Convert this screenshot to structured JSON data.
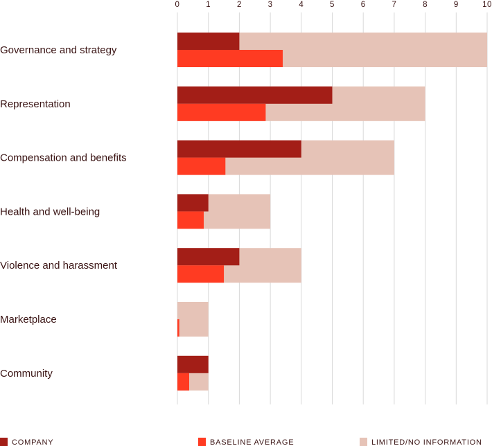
{
  "chart_data": {
    "type": "bar",
    "orientation": "horizontal",
    "title": "",
    "xlabel": "",
    "ylabel": "",
    "xlim": [
      0,
      10
    ],
    "ticks": [
      "0",
      "1",
      "2",
      "3",
      "4",
      "5",
      "6",
      "7",
      "8",
      "9",
      "10"
    ],
    "grid": true,
    "legend_position": "bottom",
    "categories": [
      "Governance and strategy",
      "Representation",
      "Compensation and benefits",
      "Health and well-being",
      "Violence and harassment",
      "Marketplace",
      "Community"
    ],
    "series": [
      {
        "name": "COMPANY",
        "values": [
          2,
          5,
          4,
          1,
          2,
          0,
          1
        ],
        "color": "#a31e17"
      },
      {
        "name": "BASELINE AVERAGE",
        "values": [
          3.4,
          2.85,
          1.55,
          0.85,
          1.5,
          0.06,
          0.38
        ],
        "color": "#ff3b22"
      },
      {
        "name": "LIMITED/NO INFORMATION",
        "values": [
          10,
          8,
          7,
          3,
          4,
          1,
          1
        ],
        "color": "#e6c3b7"
      }
    ]
  }
}
